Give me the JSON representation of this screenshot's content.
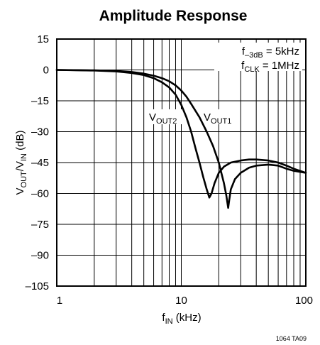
{
  "chart_data": {
    "type": "line",
    "title": "Amplitude Response",
    "xlabel": {
      "main": "f",
      "sub": "IN",
      "rest": " (kHz)"
    },
    "ylabel": {
      "a": "V",
      "a_sub": "OUT",
      "b": "/V",
      "b_sub": "IN",
      "rest": " (dB)"
    },
    "x_scale": "log",
    "xlim": [
      1,
      100
    ],
    "ylim": [
      -105,
      15
    ],
    "x_ticks": [
      1,
      10,
      100
    ],
    "x_tick_labels": [
      "1",
      "10",
      "100"
    ],
    "y_ticks": [
      15,
      0,
      -15,
      -30,
      -45,
      -60,
      -75,
      -90,
      -105
    ],
    "y_tick_labels": [
      "15",
      "0",
      "–15",
      "–30",
      "–45",
      "–60",
      "–75",
      "–90",
      "–105"
    ],
    "grid": true,
    "series": [
      {
        "name": "VOUT1",
        "color": "#000000",
        "x": [
          1,
          2,
          3,
          4,
          5,
          6,
          7,
          8,
          9,
          10,
          11,
          12,
          14,
          16,
          18,
          20,
          22,
          23,
          23.8,
          24.3,
          25,
          27,
          30,
          35,
          40,
          50,
          60,
          70,
          80,
          100
        ],
        "y": [
          0,
          -0.2,
          -0.5,
          -1,
          -1.8,
          -2.8,
          -4,
          -5.5,
          -7.5,
          -10,
          -13,
          -16.5,
          -23,
          -30,
          -37,
          -45,
          -55,
          -61,
          -67,
          -63,
          -58,
          -53,
          -50,
          -47.5,
          -46.5,
          -46,
          -46.5,
          -48,
          -49,
          -50
        ]
      },
      {
        "name": "VOUT2",
        "color": "#000000",
        "x": [
          1,
          2,
          3,
          4,
          5,
          6,
          7,
          8,
          9,
          10,
          11,
          12,
          13,
          14,
          15,
          16,
          16.8,
          17.5,
          18.5,
          20,
          22,
          25,
          30,
          35,
          40,
          50,
          60,
          70,
          80,
          100
        ],
        "y": [
          0,
          -0.3,
          -0.7,
          -1.5,
          -2.5,
          -4,
          -6,
          -8.5,
          -12,
          -17,
          -23,
          -30,
          -38,
          -45,
          -52,
          -58,
          -62,
          -60,
          -55,
          -50,
          -47,
          -45,
          -44,
          -43.5,
          -43.5,
          -44,
          -45,
          -46.5,
          -48,
          -50
        ]
      }
    ],
    "annotations": {
      "f3db": {
        "main": "f",
        "sub": "–3dB",
        "rest": " = 5kHz"
      },
      "fclk": {
        "main": "f",
        "sub": "CLK",
        "rest": " = 1MHz"
      },
      "vout2": {
        "main": "V",
        "sub": "OUT2"
      },
      "vout1": {
        "main": "V",
        "sub": "OUT1"
      }
    },
    "figure_id": "1064 TA09"
  }
}
